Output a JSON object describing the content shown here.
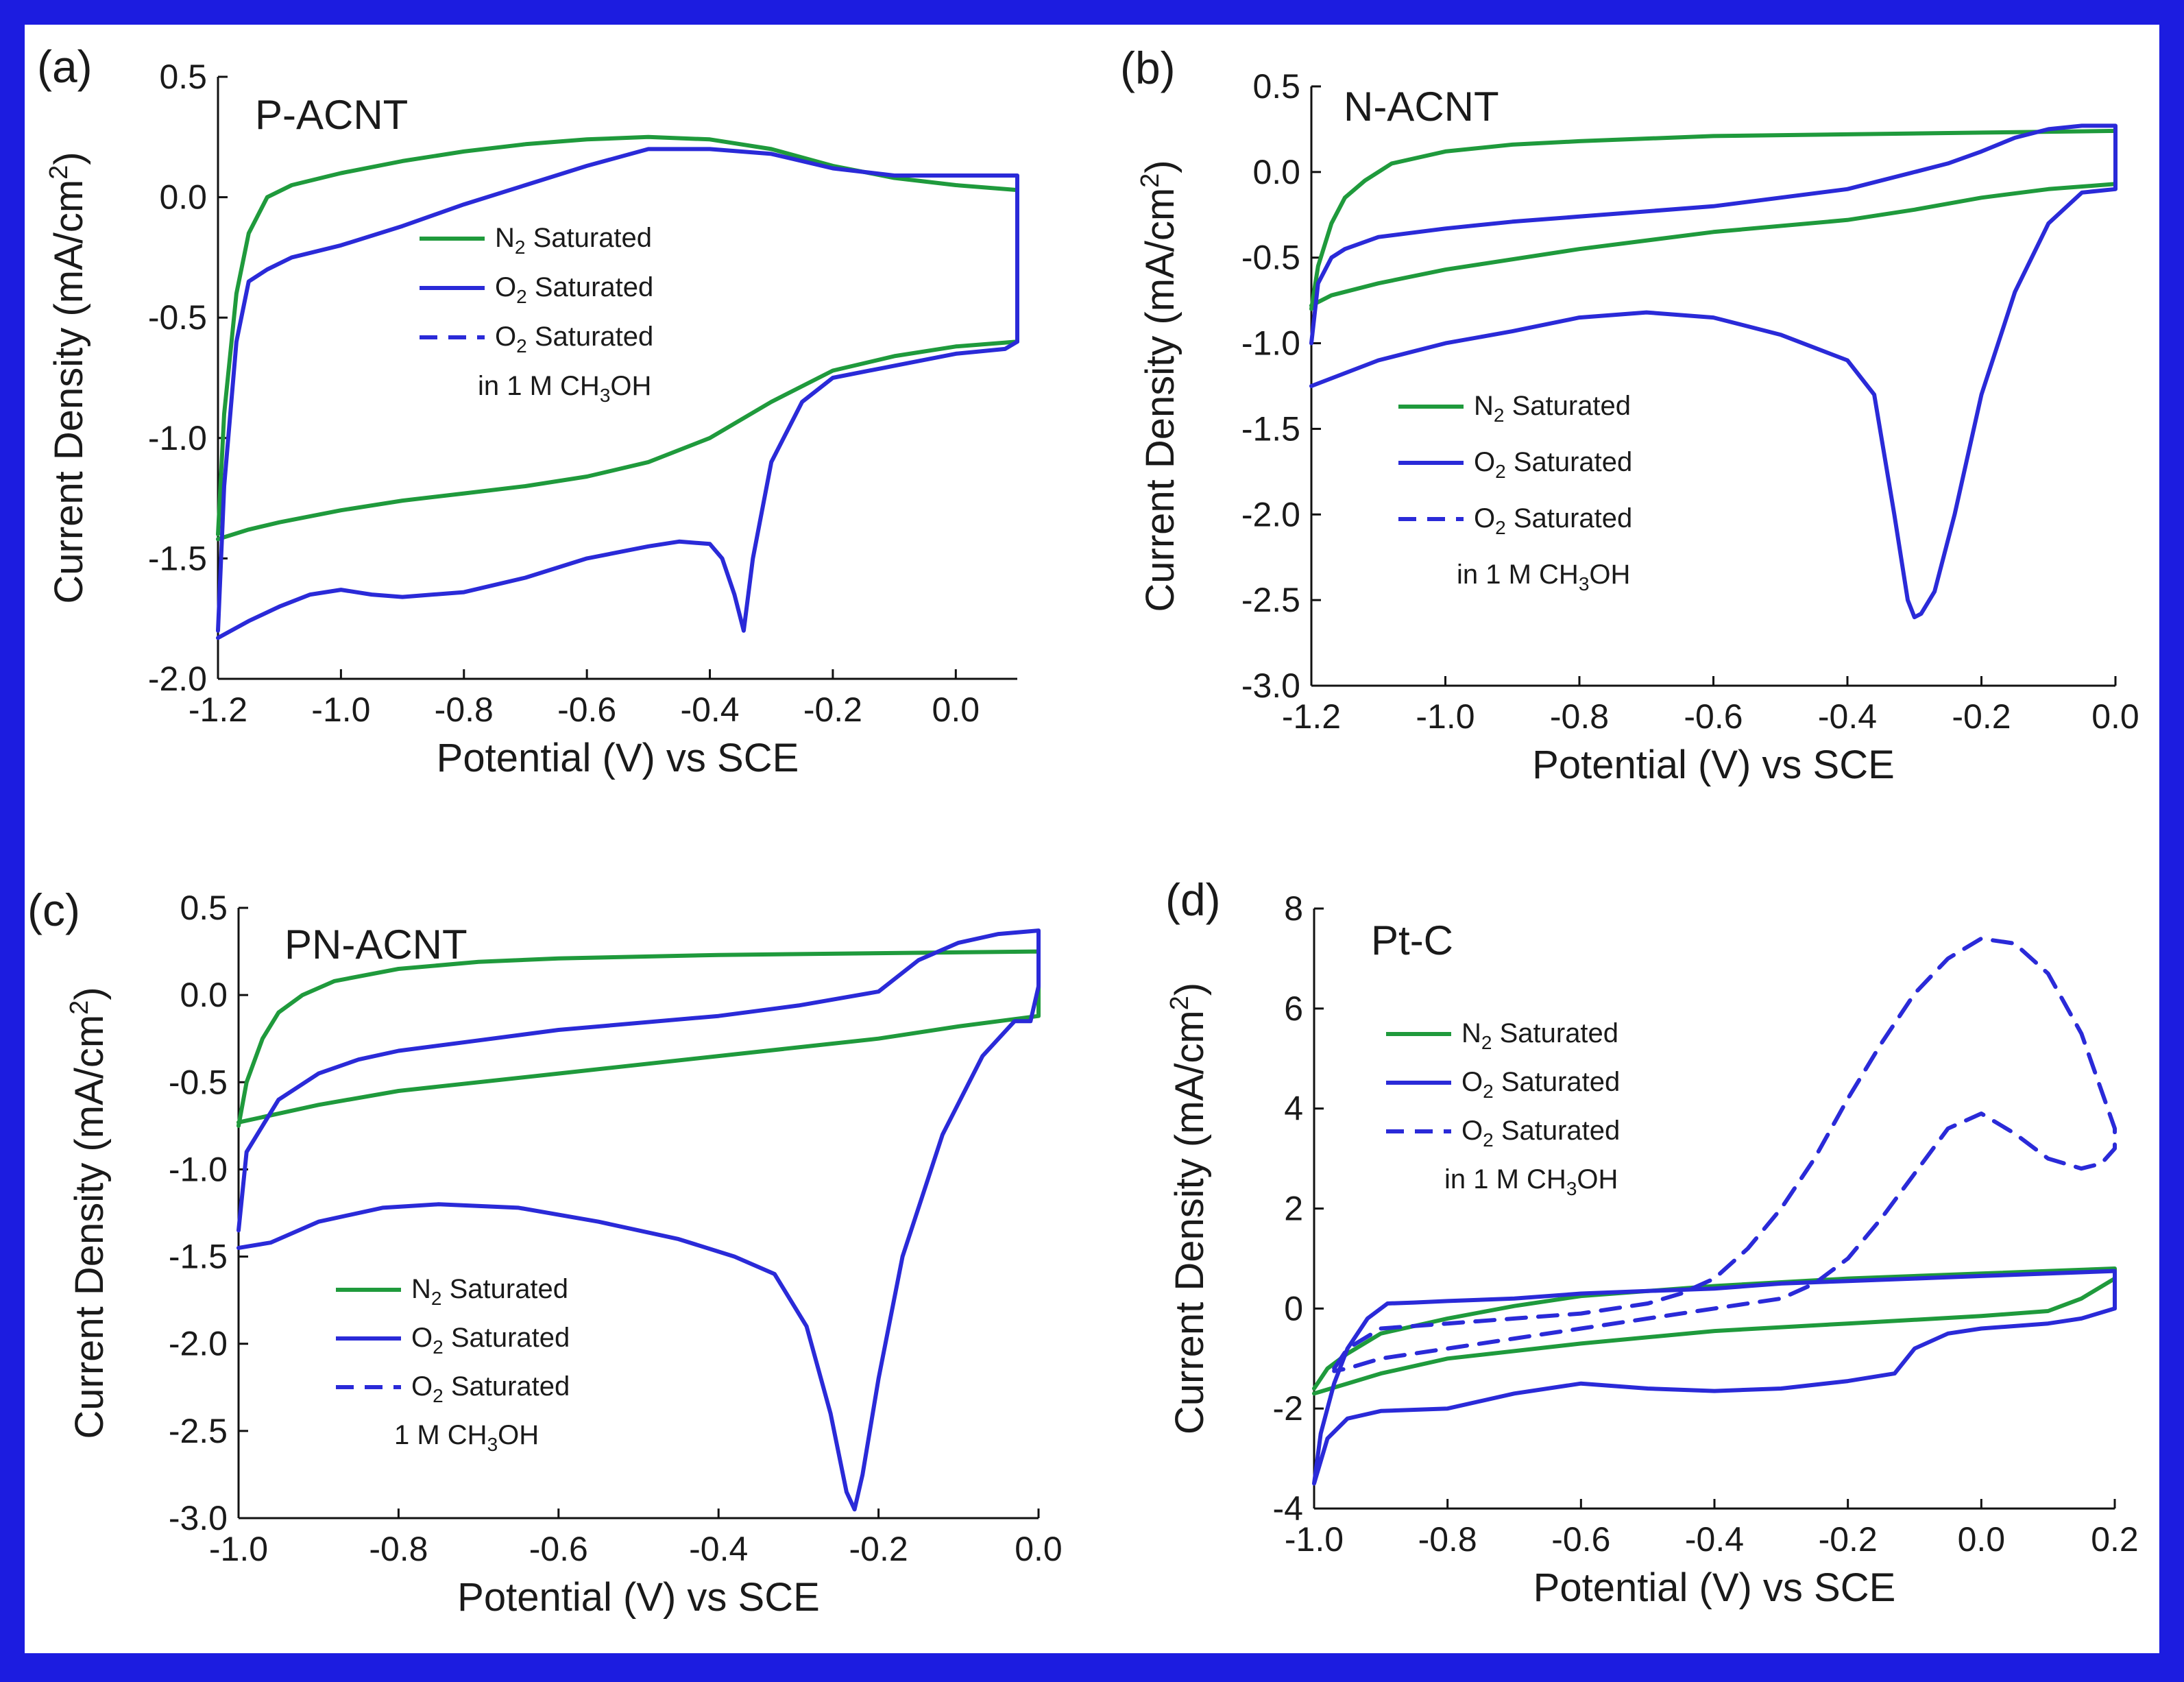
{
  "colors": {
    "border": "#1c1ce0",
    "n2": "#1f9a3c",
    "o2": "#2a2ad8",
    "axis": "#111111"
  },
  "chart_data": [
    {
      "type": "line",
      "letter": "(a)",
      "title": "P-ACNT",
      "xlabel": "Potential (V) vs SCE",
      "ylabel": "Current Density (mA/cm",
      "ylabel_sup": "2",
      "ylabel_end": ")",
      "xlim": [
        -1.2,
        0.1
      ],
      "ylim": [
        -2.0,
        0.5
      ],
      "xticks": [
        -1.2,
        -1.0,
        -0.8,
        -0.6,
        -0.4,
        -0.2,
        0.0
      ],
      "xtick_labels": [
        "-1.2",
        "-1.0",
        "-0.8",
        "-0.6",
        "-0.4",
        "-0.2",
        "0.0"
      ],
      "yticks": [
        -2.0,
        -1.5,
        -1.0,
        -0.5,
        0.0,
        0.5
      ],
      "ytick_labels": [
        "-2.0",
        "-1.5",
        "-1.0",
        "-0.5",
        "0.0",
        "0.5"
      ],
      "legend": [
        {
          "style": "solid",
          "color": "n2",
          "label": "N",
          "sub": "2",
          "rest": " Saturated"
        },
        {
          "style": "solid",
          "color": "o2",
          "label": "O",
          "sub": "2",
          "rest": " Saturated"
        },
        {
          "style": "dash",
          "color": "o2",
          "label": "O",
          "sub": "2",
          "rest": " Saturated"
        },
        {
          "style": "none",
          "color": "o2",
          "label": "in 1 M CH",
          "sub": "3",
          "rest": "OH"
        }
      ],
      "series": [
        {
          "name": "N2 Saturated",
          "color": "n2",
          "dash": false,
          "x": [
            -1.2,
            -1.19,
            -1.17,
            -1.15,
            -1.12,
            -1.08,
            -1.0,
            -0.9,
            -0.8,
            -0.7,
            -0.6,
            -0.5,
            -0.4,
            -0.3,
            -0.2,
            -0.1,
            0.0,
            0.1,
            0.1,
            0.0,
            -0.1,
            -0.2,
            -0.3,
            -0.4,
            -0.5,
            -0.6,
            -0.7,
            -0.8,
            -0.9,
            -1.0,
            -1.1,
            -1.15,
            -1.2
          ],
          "y": [
            -1.4,
            -0.9,
            -0.4,
            -0.15,
            0.0,
            0.05,
            0.1,
            0.15,
            0.19,
            0.22,
            0.24,
            0.25,
            0.24,
            0.2,
            0.13,
            0.08,
            0.05,
            0.03,
            -0.6,
            -0.62,
            -0.66,
            -0.72,
            -0.85,
            -1.0,
            -1.1,
            -1.16,
            -1.2,
            -1.23,
            -1.26,
            -1.3,
            -1.35,
            -1.38,
            -1.42
          ]
        },
        {
          "name": "O2 Saturated",
          "color": "o2",
          "dash": false,
          "x": [
            -1.2,
            -1.19,
            -1.17,
            -1.15,
            -1.12,
            -1.08,
            -1.0,
            -0.9,
            -0.8,
            -0.7,
            -0.6,
            -0.5,
            -0.4,
            -0.3,
            -0.2,
            -0.1,
            0.0,
            0.1,
            0.1,
            0.1,
            0.08,
            0.0,
            -0.1,
            -0.2,
            -0.25,
            -0.3,
            -0.33,
            -0.345,
            -0.36,
            -0.38,
            -0.4,
            -0.45,
            -0.5,
            -0.6,
            -0.7,
            -0.8,
            -0.9,
            -0.95,
            -1.0,
            -1.05,
            -1.1,
            -1.15,
            -1.2
          ],
          "y": [
            -1.8,
            -1.2,
            -0.6,
            -0.35,
            -0.3,
            -0.25,
            -0.2,
            -0.12,
            -0.03,
            0.05,
            0.13,
            0.2,
            0.2,
            0.18,
            0.12,
            0.09,
            0.09,
            0.09,
            -0.38,
            -0.6,
            -0.63,
            -0.65,
            -0.7,
            -0.75,
            -0.85,
            -1.1,
            -1.5,
            -1.8,
            -1.65,
            -1.5,
            -1.44,
            -1.43,
            -1.45,
            -1.5,
            -1.58,
            -1.64,
            -1.66,
            -1.65,
            -1.63,
            -1.65,
            -1.7,
            -1.76,
            -1.83
          ]
        }
      ]
    },
    {
      "type": "line",
      "letter": "(b)",
      "title": "N-ACNT",
      "xlabel": "Potential (V) vs SCE",
      "ylabel": "Current Density (mA/cm",
      "ylabel_sup": "2",
      "ylabel_end": ")",
      "xlim": [
        -1.2,
        0.0
      ],
      "ylim": [
        -3.0,
        0.5
      ],
      "xticks": [
        -1.2,
        -1.0,
        -0.8,
        -0.6,
        -0.4,
        -0.2,
        0.0
      ],
      "xtick_labels": [
        "-1.2",
        "-1.0",
        "-0.8",
        "-0.6",
        "-0.4",
        "-0.2",
        "0.0"
      ],
      "yticks": [
        -3.0,
        -2.5,
        -2.0,
        -1.5,
        -1.0,
        -0.5,
        0.0,
        0.5
      ],
      "ytick_labels": [
        "-3.0",
        "-2.5",
        "-2.0",
        "-1.5",
        "-1.0",
        "-0.5",
        "0.0",
        "0.5"
      ],
      "legend": [
        {
          "style": "solid",
          "color": "n2",
          "label": "N",
          "sub": "2",
          "rest": " Saturated"
        },
        {
          "style": "solid",
          "color": "o2",
          "label": "O",
          "sub": "2",
          "rest": " Saturated"
        },
        {
          "style": "dash",
          "color": "o2",
          "label": "O",
          "sub": "2",
          "rest": " Saturated"
        },
        {
          "style": "none",
          "color": "o2",
          "label": "in 1 M CH",
          "sub": "3",
          "rest": "OH"
        }
      ],
      "series": [
        {
          "name": "N2 Saturated",
          "color": "n2",
          "dash": false,
          "x": [
            -1.2,
            -1.19,
            -1.17,
            -1.15,
            -1.12,
            -1.08,
            -1.0,
            -0.9,
            -0.8,
            -0.6,
            -0.4,
            -0.2,
            0.0,
            0.0,
            -0.1,
            -0.2,
            -0.3,
            -0.4,
            -0.6,
            -0.8,
            -1.0,
            -1.1,
            -1.17,
            -1.2
          ],
          "y": [
            -0.8,
            -0.55,
            -0.3,
            -0.15,
            -0.05,
            0.05,
            0.12,
            0.16,
            0.18,
            0.21,
            0.22,
            0.23,
            0.24,
            -0.07,
            -0.1,
            -0.15,
            -0.22,
            -0.28,
            -0.35,
            -0.45,
            -0.57,
            -0.65,
            -0.72,
            -0.78
          ]
        },
        {
          "name": "O2 Saturated",
          "color": "o2",
          "dash": false,
          "x": [
            -1.2,
            -1.19,
            -1.17,
            -1.15,
            -1.1,
            -1.0,
            -0.9,
            -0.8,
            -0.6,
            -0.4,
            -0.3,
            -0.25,
            -0.2,
            -0.15,
            -0.1,
            -0.05,
            0.0,
            0.0,
            0.0,
            -0.05,
            -0.1,
            -0.15,
            -0.2,
            -0.24,
            -0.27,
            -0.29,
            -0.3,
            -0.31,
            -0.33,
            -0.36,
            -0.4,
            -0.5,
            -0.6,
            -0.7,
            -0.8,
            -0.9,
            -1.0,
            -1.1,
            -1.2
          ],
          "y": [
            -1.0,
            -0.65,
            -0.5,
            -0.45,
            -0.38,
            -0.33,
            -0.29,
            -0.26,
            -0.2,
            -0.1,
            0.0,
            0.05,
            0.12,
            0.2,
            0.25,
            0.27,
            0.27,
            0.0,
            -0.1,
            -0.12,
            -0.3,
            -0.7,
            -1.3,
            -2.0,
            -2.45,
            -2.58,
            -2.6,
            -2.5,
            -2.0,
            -1.3,
            -1.1,
            -0.95,
            -0.85,
            -0.82,
            -0.85,
            -0.93,
            -1.0,
            -1.1,
            -1.25
          ]
        }
      ]
    },
    {
      "type": "line",
      "letter": "(c)",
      "title": "PN-ACNT",
      "xlabel": "Potential (V) vs SCE",
      "ylabel": "Current Density (mA/cm",
      "ylabel_sup": "2",
      "ylabel_end": ")",
      "xlim": [
        -1.0,
        0.0
      ],
      "ylim": [
        -3.0,
        0.5
      ],
      "xticks": [
        -1.0,
        -0.8,
        -0.6,
        -0.4,
        -0.2,
        0.0
      ],
      "xtick_labels": [
        "-1.0",
        "-0.8",
        "-0.6",
        "-0.4",
        "-0.2",
        "0.0"
      ],
      "yticks": [
        -3.0,
        -2.5,
        -2.0,
        -1.5,
        -1.0,
        -0.5,
        0.0,
        0.5
      ],
      "ytick_labels": [
        "-3.0",
        "-2.5",
        "-2.0",
        "-1.5",
        "-1.0",
        "-0.5",
        "0.0",
        "0.5"
      ],
      "legend": [
        {
          "style": "solid",
          "color": "n2",
          "label": "N",
          "sub": "2",
          "rest": " Saturated"
        },
        {
          "style": "solid",
          "color": "o2",
          "label": "O",
          "sub": "2",
          "rest": " Saturated"
        },
        {
          "style": "dash",
          "color": "o2",
          "label": "O",
          "sub": "2",
          "rest": " Saturated"
        },
        {
          "style": "none",
          "color": "o2",
          "label": "1 M CH",
          "sub": "3",
          "rest": "OH"
        }
      ],
      "series": [
        {
          "name": "N2 Saturated",
          "color": "n2",
          "dash": false,
          "x": [
            -1.0,
            -0.99,
            -0.97,
            -0.95,
            -0.92,
            -0.88,
            -0.8,
            -0.7,
            -0.6,
            -0.4,
            -0.2,
            0.0,
            0.0,
            -0.1,
            -0.2,
            -0.3,
            -0.4,
            -0.6,
            -0.8,
            -0.9,
            -0.95,
            -1.0
          ],
          "y": [
            -0.75,
            -0.5,
            -0.25,
            -0.1,
            0.0,
            0.08,
            0.15,
            0.19,
            0.21,
            0.23,
            0.24,
            0.25,
            -0.12,
            -0.18,
            -0.25,
            -0.3,
            -0.35,
            -0.45,
            -0.55,
            -0.63,
            -0.68,
            -0.73
          ]
        },
        {
          "name": "O2 Saturated",
          "color": "o2",
          "dash": false,
          "x": [
            -1.0,
            -0.99,
            -0.97,
            -0.95,
            -0.9,
            -0.85,
            -0.8,
            -0.7,
            -0.6,
            -0.4,
            -0.3,
            -0.2,
            -0.15,
            -0.1,
            -0.05,
            0.0,
            0.0,
            -0.01,
            -0.03,
            -0.07,
            -0.12,
            -0.17,
            -0.2,
            -0.22,
            -0.23,
            -0.24,
            -0.26,
            -0.29,
            -0.33,
            -0.38,
            -0.45,
            -0.55,
            -0.65,
            -0.75,
            -0.82,
            -0.9,
            -0.96,
            -1.0
          ],
          "y": [
            -1.35,
            -0.9,
            -0.75,
            -0.6,
            -0.45,
            -0.37,
            -0.32,
            -0.26,
            -0.2,
            -0.12,
            -0.06,
            0.02,
            0.2,
            0.3,
            0.35,
            0.37,
            0.05,
            -0.15,
            -0.15,
            -0.35,
            -0.8,
            -1.5,
            -2.2,
            -2.75,
            -2.95,
            -2.85,
            -2.4,
            -1.9,
            -1.6,
            -1.5,
            -1.4,
            -1.3,
            -1.22,
            -1.2,
            -1.22,
            -1.3,
            -1.42,
            -1.45
          ]
        }
      ]
    },
    {
      "type": "line",
      "letter": "(d)",
      "title": "Pt-C",
      "xlabel": "Potential (V) vs SCE",
      "ylabel": "Current Density (mA/cm",
      "ylabel_sup": "2",
      "ylabel_end": ")",
      "xlim": [
        -1.0,
        0.2
      ],
      "ylim": [
        -4,
        8
      ],
      "xticks": [
        -1.0,
        -0.8,
        -0.6,
        -0.4,
        -0.2,
        0.0,
        0.2
      ],
      "xtick_labels": [
        "-1.0",
        "-0.8",
        "-0.6",
        "-0.4",
        "-0.2",
        "0.0",
        "0.2"
      ],
      "yticks": [
        -4,
        -2,
        0,
        2,
        4,
        6,
        8
      ],
      "ytick_labels": [
        "-4",
        "-2",
        "0",
        "2",
        "4",
        "6",
        "8"
      ],
      "legend": [
        {
          "style": "solid",
          "color": "n2",
          "label": "N",
          "sub": "2",
          "rest": " Saturated"
        },
        {
          "style": "solid",
          "color": "o2",
          "label": "O",
          "sub": "2",
          "rest": " Saturated"
        },
        {
          "style": "dash",
          "color": "o2",
          "label": "O",
          "sub": "2",
          "rest": " Saturated"
        },
        {
          "style": "none",
          "color": "o2",
          "label": "in 1 M CH",
          "sub": "3",
          "rest": "OH"
        }
      ],
      "series": [
        {
          "name": "N2 Saturated",
          "color": "n2",
          "dash": false,
          "x": [
            -1.0,
            -0.98,
            -0.95,
            -0.9,
            -0.8,
            -0.7,
            -0.6,
            -0.4,
            -0.2,
            0.0,
            0.2,
            0.2,
            0.15,
            0.1,
            0.0,
            -0.2,
            -0.4,
            -0.6,
            -0.8,
            -0.9,
            -0.95,
            -1.0
          ],
          "y": [
            -1.6,
            -1.2,
            -0.9,
            -0.5,
            -0.2,
            0.05,
            0.25,
            0.45,
            0.6,
            0.7,
            0.8,
            0.6,
            0.2,
            -0.05,
            -0.15,
            -0.3,
            -0.45,
            -0.7,
            -1.0,
            -1.3,
            -1.5,
            -1.7
          ]
        },
        {
          "name": "O2 Saturated",
          "color": "o2",
          "dash": false,
          "x": [
            -1.0,
            -0.99,
            -0.97,
            -0.95,
            -0.92,
            -0.89,
            -0.85,
            -0.8,
            -0.7,
            -0.6,
            -0.5,
            -0.4,
            -0.3,
            -0.2,
            -0.1,
            0.0,
            0.1,
            0.2,
            0.2,
            0.15,
            0.1,
            0.0,
            -0.05,
            -0.1,
            -0.13,
            -0.2,
            -0.3,
            -0.4,
            -0.5,
            -0.6,
            -0.7,
            -0.8,
            -0.9,
            -0.95,
            -0.98,
            -1.0
          ],
          "y": [
            -3.5,
            -2.5,
            -1.5,
            -0.8,
            -0.2,
            0.1,
            0.12,
            0.15,
            0.2,
            0.3,
            0.35,
            0.4,
            0.5,
            0.55,
            0.6,
            0.65,
            0.7,
            0.75,
            0.0,
            -0.2,
            -0.3,
            -0.4,
            -0.5,
            -0.8,
            -1.3,
            -1.45,
            -1.6,
            -1.65,
            -1.6,
            -1.5,
            -1.7,
            -2.0,
            -2.05,
            -2.2,
            -2.6,
            -3.5
          ]
        },
        {
          "name": "O2 Saturated in 1 M CH3OH",
          "color": "o2",
          "dash": true,
          "x": [
            -0.97,
            -0.95,
            -0.9,
            -0.8,
            -0.7,
            -0.6,
            -0.5,
            -0.45,
            -0.4,
            -0.35,
            -0.3,
            -0.25,
            -0.2,
            -0.15,
            -0.1,
            -0.05,
            0.0,
            0.05,
            0.1,
            0.15,
            0.2,
            0.2,
            0.18,
            0.15,
            0.1,
            0.05,
            0.0,
            -0.05,
            -0.1,
            -0.15,
            -0.2,
            -0.25,
            -0.3,
            -0.35,
            -0.4,
            -0.5,
            -0.6,
            -0.7,
            -0.8,
            -0.9,
            -0.95,
            -0.97
          ],
          "y": [
            -1.2,
            -0.8,
            -0.4,
            -0.3,
            -0.2,
            -0.1,
            0.1,
            0.3,
            0.6,
            1.2,
            2.0,
            3.0,
            4.2,
            5.3,
            6.3,
            7.0,
            7.4,
            7.3,
            6.7,
            5.5,
            3.6,
            3.2,
            2.9,
            2.8,
            3.0,
            3.5,
            3.9,
            3.6,
            2.7,
            1.8,
            1.0,
            0.5,
            0.2,
            0.1,
            0.0,
            -0.2,
            -0.4,
            -0.6,
            -0.8,
            -1.0,
            -1.2,
            -1.25
          ]
        }
      ]
    }
  ]
}
